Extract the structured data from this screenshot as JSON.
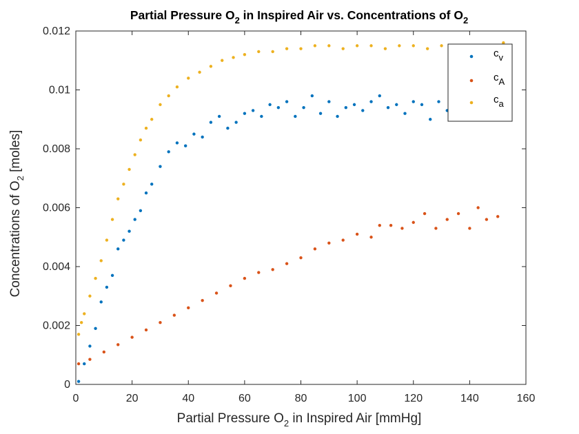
{
  "chart_data": {
    "type": "scatter",
    "title": {
      "pre": "Partial Pressure O",
      "sub1": "2",
      "mid": " in Inspired Air vs. Concentrations of O",
      "sub2": "2"
    },
    "xlabel": {
      "pre": "Partial Pressure O",
      "sub": "2",
      "post": " in Inspired Air [mmHg]"
    },
    "ylabel": {
      "pre": "Concentrations of O",
      "sub": "2",
      "post": " [moles]"
    },
    "xlim": [
      0,
      160
    ],
    "ylim": [
      0,
      0.012
    ],
    "xticks": [
      0,
      20,
      40,
      60,
      80,
      100,
      120,
      140,
      160
    ],
    "yticks": [
      0,
      0.002,
      0.004,
      0.006,
      0.008,
      0.01,
      0.012
    ],
    "xtick_labels": [
      "0",
      "20",
      "40",
      "60",
      "80",
      "100",
      "120",
      "140",
      "160"
    ],
    "ytick_labels": [
      "0",
      "0.002",
      "0.004",
      "0.006",
      "0.008",
      "0.01",
      "0.012"
    ],
    "grid": false,
    "legend_position": "top-right",
    "series": [
      {
        "name": {
          "base": "c",
          "sub": "v"
        },
        "color": "#0072BD",
        "x": [
          1,
          3,
          5,
          7,
          9,
          11,
          13,
          15,
          17,
          19,
          21,
          23,
          25,
          27,
          30,
          33,
          36,
          39,
          42,
          45,
          48,
          51,
          54,
          57,
          60,
          63,
          66,
          69,
          72,
          75,
          78,
          81,
          84,
          87,
          90,
          93,
          96,
          99,
          102,
          105,
          108,
          111,
          114,
          117,
          120,
          123,
          126,
          129,
          132,
          135,
          138,
          141,
          144,
          147,
          151
        ],
        "y": [
          0.0001,
          0.0007,
          0.0013,
          0.0019,
          0.0028,
          0.0033,
          0.0037,
          0.0046,
          0.0049,
          0.0052,
          0.0056,
          0.0059,
          0.0065,
          0.0068,
          0.0074,
          0.0079,
          0.0082,
          0.0081,
          0.0085,
          0.0084,
          0.0089,
          0.0091,
          0.0087,
          0.0089,
          0.0092,
          0.0093,
          0.0091,
          0.0095,
          0.0094,
          0.0096,
          0.0091,
          0.0094,
          0.0098,
          0.0092,
          0.0096,
          0.0091,
          0.0094,
          0.0095,
          0.0093,
          0.0096,
          0.0098,
          0.0094,
          0.0095,
          0.0092,
          0.0096,
          0.0095,
          0.009,
          0.0096,
          0.0093,
          0.0098,
          0.0095,
          0.0092,
          0.0096,
          0.0094,
          0.0091
        ]
      },
      {
        "name": {
          "base": "c",
          "sub": "A"
        },
        "color": "#D95319",
        "x": [
          1,
          5,
          10,
          15,
          20,
          25,
          30,
          35,
          40,
          45,
          50,
          55,
          60,
          65,
          70,
          75,
          80,
          85,
          90,
          95,
          100,
          105,
          108,
          112,
          116,
          120,
          124,
          128,
          132,
          136,
          140,
          143,
          146,
          150
        ],
        "y": [
          0.0007,
          0.00085,
          0.0011,
          0.00135,
          0.0016,
          0.00185,
          0.0021,
          0.00235,
          0.0026,
          0.00285,
          0.0031,
          0.00335,
          0.0036,
          0.0038,
          0.0039,
          0.0041,
          0.0043,
          0.0046,
          0.0048,
          0.0049,
          0.0051,
          0.005,
          0.0054,
          0.0054,
          0.0053,
          0.0055,
          0.0058,
          0.0053,
          0.0056,
          0.0058,
          0.0053,
          0.006,
          0.0056,
          0.0057
        ]
      },
      {
        "name": {
          "base": "c",
          "sub": "a"
        },
        "color": "#EDB120",
        "x": [
          1,
          2,
          3,
          5,
          7,
          9,
          11,
          13,
          15,
          17,
          19,
          21,
          23,
          25,
          27,
          30,
          33,
          36,
          40,
          44,
          48,
          52,
          56,
          60,
          65,
          70,
          75,
          80,
          85,
          90,
          95,
          100,
          105,
          110,
          115,
          120,
          125,
          130,
          135,
          140,
          145,
          150,
          152
        ],
        "y": [
          0.0017,
          0.0021,
          0.0024,
          0.003,
          0.0036,
          0.0042,
          0.0049,
          0.0056,
          0.0063,
          0.0068,
          0.0073,
          0.0078,
          0.0083,
          0.0087,
          0.009,
          0.0095,
          0.0098,
          0.0101,
          0.0104,
          0.0106,
          0.0108,
          0.011,
          0.0111,
          0.0112,
          0.0113,
          0.0113,
          0.0114,
          0.0114,
          0.0115,
          0.0115,
          0.0114,
          0.0115,
          0.0115,
          0.0114,
          0.0115,
          0.0115,
          0.0114,
          0.0115,
          0.0115,
          0.0115,
          0.0115,
          0.0115,
          0.0116
        ]
      }
    ]
  }
}
